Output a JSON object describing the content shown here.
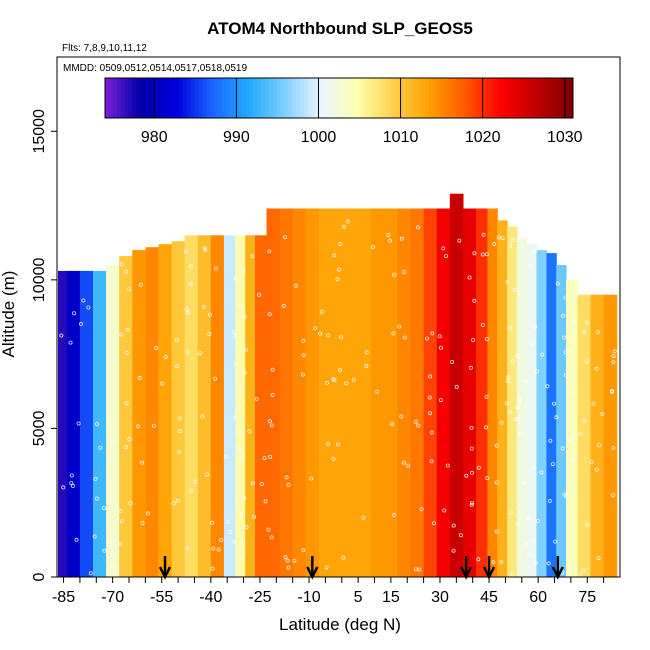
{
  "chart_data": {
    "type": "heatmap",
    "title": "ATOM4 Northbound SLP_GEOS5",
    "subtitle_flights": "Flts: 7,8,9,10,11,12",
    "subtitle_dates": "MMDD: 0509,0512,0514,0517,0518,0519",
    "xlabel": "Latitude (deg N)",
    "ylabel": "Altitude (m)",
    "xlim": [
      -87,
      85
    ],
    "ylim": [
      0,
      17500
    ],
    "x_ticks": [
      -85,
      -70,
      -55,
      -40,
      -25,
      -10,
      5,
      15,
      30,
      45,
      60,
      75
    ],
    "x_minor_ticks": [
      -80,
      -75,
      -65,
      -60,
      -50,
      -45,
      -35,
      -30,
      -20,
      -15,
      -5,
      0,
      10,
      20,
      25,
      35,
      40,
      50,
      55,
      65,
      70,
      80
    ],
    "x_tick_labels": [
      "-85",
      "-70",
      "-55",
      "-40",
      "-25",
      "-10",
      "5",
      "15",
      "30",
      "45",
      "60",
      "75"
    ],
    "y_ticks": [
      0,
      5000,
      10000,
      15000
    ],
    "y_tick_labels": [
      "0",
      "5000",
      "10000",
      "15000"
    ],
    "colorbar": {
      "range": [
        974,
        1031
      ],
      "ticks": [
        980,
        990,
        1000,
        1010,
        1020,
        1030
      ],
      "tick_labels": [
        "980",
        "990",
        "1000",
        "1010",
        "1020",
        "1030"
      ],
      "colors": [
        "#7b1fd8",
        "#0000a8",
        "#0000e0",
        "#1a66ff",
        "#22aaff",
        "#7fd0ff",
        "#eaf6ff",
        "#ffffb0",
        "#ffd24a",
        "#ffa000",
        "#ff5a00",
        "#ff0000",
        "#c00000",
        "#7a0000"
      ]
    },
    "profile": [
      {
        "lat": -86,
        "slp": 977,
        "top": 10300
      },
      {
        "lat": -82,
        "slp": 981,
        "top": 10300
      },
      {
        "lat": -78,
        "slp": 986,
        "top": 10300
      },
      {
        "lat": -74,
        "slp": 993,
        "top": 10300
      },
      {
        "lat": -70,
        "slp": 1003,
        "top": 10500
      },
      {
        "lat": -66,
        "slp": 1010,
        "top": 10800
      },
      {
        "lat": -62,
        "slp": 1014,
        "top": 11000
      },
      {
        "lat": -58,
        "slp": 1015,
        "top": 11100
      },
      {
        "lat": -54,
        "slp": 1013,
        "top": 11200
      },
      {
        "lat": -50,
        "slp": 1010,
        "top": 11300
      },
      {
        "lat": -46,
        "slp": 1008,
        "top": 11500
      },
      {
        "lat": -42,
        "slp": 1011,
        "top": 11500
      },
      {
        "lat": -38,
        "slp": 1015,
        "top": 11500
      },
      {
        "lat": -34,
        "slp": 999,
        "top": 11500
      },
      {
        "lat": -31,
        "slp": 1005,
        "top": 11500
      },
      {
        "lat": -28,
        "slp": 1012,
        "top": 11500
      },
      {
        "lat": -25,
        "slp": 1017,
        "top": 11500
      },
      {
        "lat": -21,
        "slp": 1017,
        "top": 12400
      },
      {
        "lat": -17,
        "slp": 1016,
        "top": 12400
      },
      {
        "lat": -13,
        "slp": 1015,
        "top": 12400
      },
      {
        "lat": -9,
        "slp": 1014,
        "top": 12400
      },
      {
        "lat": -5,
        "slp": 1013,
        "top": 12400
      },
      {
        "lat": -1,
        "slp": 1013,
        "top": 12400
      },
      {
        "lat": 3,
        "slp": 1013,
        "top": 12400
      },
      {
        "lat": 7,
        "slp": 1013,
        "top": 12400
      },
      {
        "lat": 11,
        "slp": 1014,
        "top": 12400
      },
      {
        "lat": 15,
        "slp": 1014,
        "top": 12400
      },
      {
        "lat": 19,
        "slp": 1015,
        "top": 12400
      },
      {
        "lat": 23,
        "slp": 1016,
        "top": 12400
      },
      {
        "lat": 27,
        "slp": 1019,
        "top": 12400
      },
      {
        "lat": 31,
        "slp": 1023,
        "top": 12400
      },
      {
        "lat": 35,
        "slp": 1026,
        "top": 12900
      },
      {
        "lat": 39,
        "slp": 1024,
        "top": 12400
      },
      {
        "lat": 43,
        "slp": 1020,
        "top": 12400
      },
      {
        "lat": 46,
        "slp": 1015,
        "top": 12400
      },
      {
        "lat": 49,
        "slp": 1012,
        "top": 12000
      },
      {
        "lat": 52,
        "slp": 1007,
        "top": 11800
      },
      {
        "lat": 55,
        "slp": 1002,
        "top": 11400
      },
      {
        "lat": 58,
        "slp": 1001,
        "top": 11200
      },
      {
        "lat": 61,
        "slp": 996,
        "top": 11000
      },
      {
        "lat": 64,
        "slp": 988,
        "top": 10900
      },
      {
        "lat": 67,
        "slp": 995,
        "top": 10500
      },
      {
        "lat": 70,
        "slp": 1004,
        "top": 10000
      },
      {
        "lat": 74,
        "slp": 1008,
        "top": 9500
      },
      {
        "lat": 78,
        "slp": 1012,
        "top": 9500
      },
      {
        "lat": 82,
        "slp": 1014,
        "top": 9500
      }
    ],
    "arrow_latitudes": [
      -54,
      -9,
      38,
      45,
      66
    ]
  }
}
